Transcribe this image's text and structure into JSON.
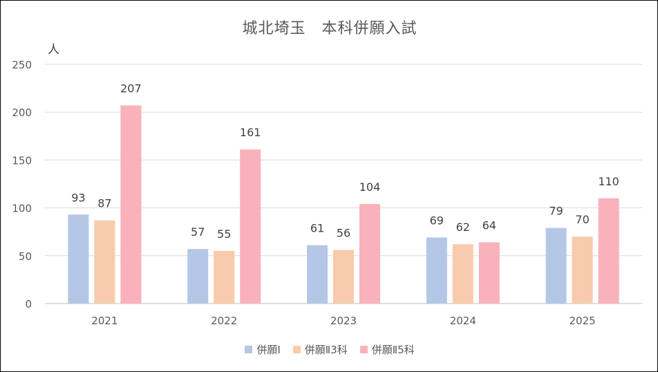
{
  "chart_data": {
    "type": "bar",
    "title": "城北埼玉　本科併願入試",
    "ylabel": "人",
    "xlabel": "",
    "ylim": [
      0,
      250
    ],
    "yticks": [
      0,
      50,
      100,
      150,
      200,
      250
    ],
    "categories": [
      "2021",
      "2022",
      "2023",
      "2024",
      "2025"
    ],
    "series": [
      {
        "name": "併願Ⅰ",
        "color": "#b4c7e7",
        "values": [
          93,
          57,
          61,
          69,
          79
        ]
      },
      {
        "name": "併願Ⅱ3科",
        "color": "#f8cbad",
        "values": [
          87,
          55,
          56,
          62,
          70
        ]
      },
      {
        "name": "併願Ⅱ5科",
        "color": "#f9b1bb",
        "values": [
          207,
          161,
          104,
          64,
          110
        ]
      }
    ],
    "grid": true,
    "legend_position": "bottom",
    "data_labels": true
  }
}
